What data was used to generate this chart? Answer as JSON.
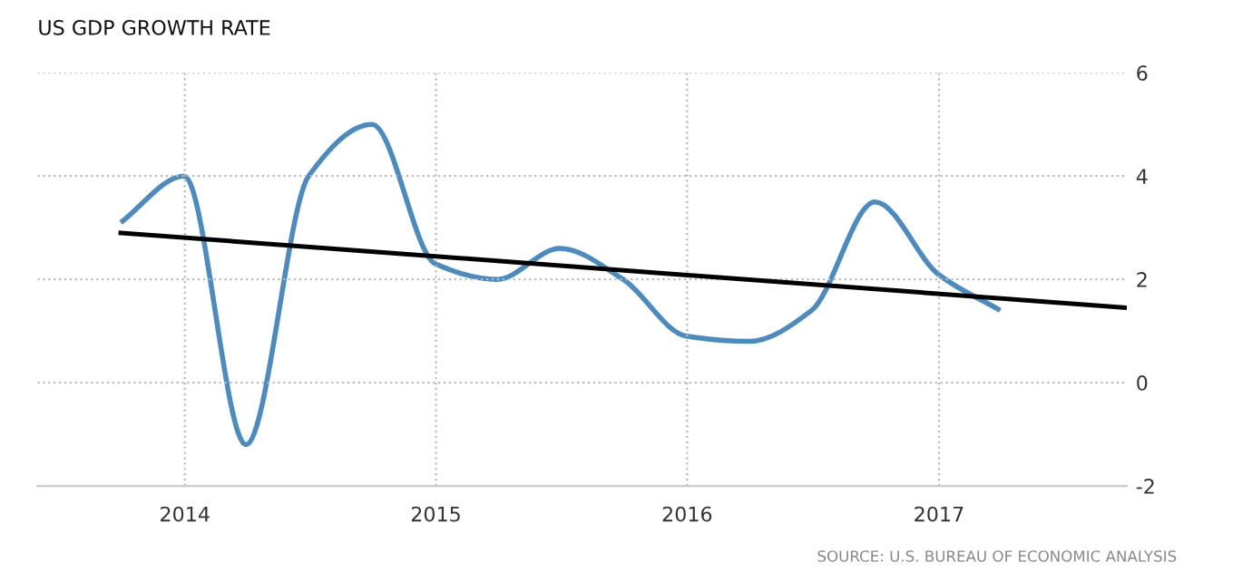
{
  "chart_data": {
    "type": "line",
    "title": "US GDP GROWTH RATE",
    "x": [
      "2013-09-30",
      "2013-12-31",
      "2014-03-31",
      "2014-06-30",
      "2014-09-30",
      "2014-12-31",
      "2015-03-31",
      "2015-06-30",
      "2015-09-30",
      "2015-12-31",
      "2016-03-31",
      "2016-06-30",
      "2016-09-30",
      "2016-12-31",
      "2017-03-31"
    ],
    "series": [
      {
        "color": "#4a8bc2",
        "values": [
          3.1,
          4.0,
          -1.2,
          4.0,
          5.0,
          2.3,
          2.0,
          2.6,
          2.0,
          0.9,
          0.8,
          1.4,
          3.5,
          2.1,
          1.4
        ]
      },
      {
        "type": "line",
        "color": "#000000",
        "x": [
          "2013-09-30",
          "2017-09-30"
        ],
        "values": [
          2.9,
          1.45
        ]
      }
    ],
    "xlim": [
      "2013-06-01",
      "2017-10-01"
    ],
    "xticks": [
      {
        "value": "2014-01-01",
        "label": "2014"
      },
      {
        "value": "2015-01-01",
        "label": "2015"
      },
      {
        "value": "2016-01-01",
        "label": "2016"
      },
      {
        "value": "2017-01-01",
        "label": "2017"
      }
    ],
    "ylim": [
      -2,
      6
    ],
    "yticks": [
      -2,
      0,
      2,
      4,
      6
    ],
    "grid": true,
    "legend": false,
    "marker": "none",
    "line_style": "solid",
    "annotations": [
      "SOURCE: U.S. BUREAU OF ECONOMIC ANALYSIS"
    ]
  }
}
